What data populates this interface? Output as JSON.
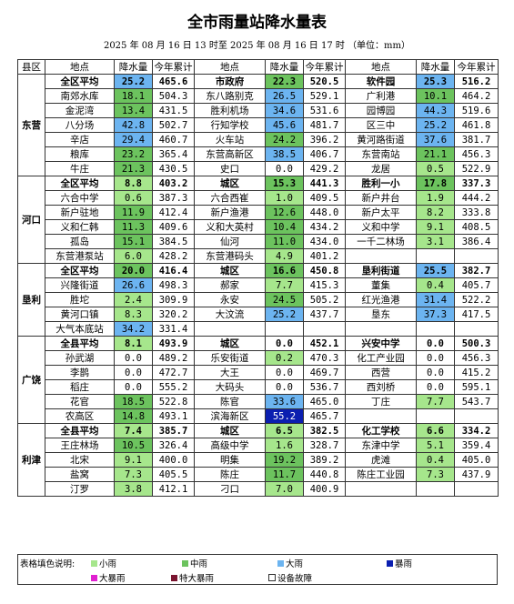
{
  "header": {
    "title": "全市雨量站降水量表",
    "subtitle": "2025 年 08 月 16 日 13 时至 2025 年 08 月 16 日 17 时 （单位：mm）"
  },
  "table": {
    "columns": [
      "县区",
      "地点",
      "降水量",
      "今年累计",
      "地点",
      "降水量",
      "今年累计",
      "地点",
      "降水量",
      "今年累计"
    ],
    "districts": [
      {
        "name": "东营",
        "rows": [
          [
            [
              "全区平均",
              "25.2",
              "465.6"
            ],
            [
              "市政府",
              "22.3",
              "520.5"
            ],
            [
              "软件园",
              "25.3",
              "516.2"
            ]
          ],
          [
            [
              "南郊水库",
              "18.1",
              "504.3"
            ],
            [
              "东八路别克",
              "26.5",
              "529.1"
            ],
            [
              "广利港",
              "10.1",
              "464.2"
            ]
          ],
          [
            [
              "金泥湾",
              "13.4",
              "431.5"
            ],
            [
              "胜利机场",
              "34.6",
              "531.6"
            ],
            [
              "园博园",
              "44.3",
              "519.6"
            ]
          ],
          [
            [
              "八分场",
              "42.8",
              "502.7"
            ],
            [
              "行知学校",
              "45.6",
              "481.7"
            ],
            [
              "区三中",
              "25.2",
              "461.8"
            ]
          ],
          [
            [
              "辛店",
              "29.4",
              "460.7"
            ],
            [
              "火车站",
              "24.2",
              "396.2"
            ],
            [
              "黄河路街道",
              "37.6",
              "381.7"
            ]
          ],
          [
            [
              "粮库",
              "23.2",
              "365.4"
            ],
            [
              "东营高新区",
              "38.5",
              "406.7"
            ],
            [
              "东营南站",
              "21.1",
              "456.3"
            ]
          ],
          [
            [
              "牛庄",
              "21.3",
              "430.5"
            ],
            [
              "史口",
              "0.0",
              "429.2"
            ],
            [
              "龙居",
              "0.5",
              "522.9"
            ]
          ]
        ]
      },
      {
        "name": "河口",
        "rows": [
          [
            [
              "全区平均",
              "8.8",
              "403.2"
            ],
            [
              "城区",
              "15.3",
              "441.3"
            ],
            [
              "胜利一小",
              "17.8",
              "337.3"
            ]
          ],
          [
            [
              "六合中学",
              "0.6",
              "387.3"
            ],
            [
              "六合西崔",
              "1.0",
              "409.5"
            ],
            [
              "新户井台",
              "1.9",
              "444.2"
            ]
          ],
          [
            [
              "新户驻地",
              "11.9",
              "412.4"
            ],
            [
              "新户渔港",
              "12.6",
              "448.0"
            ],
            [
              "新户太平",
              "8.2",
              "333.8"
            ]
          ],
          [
            [
              "义和仁韩",
              "11.3",
              "409.6"
            ],
            [
              "义和大英村",
              "10.4",
              "434.2"
            ],
            [
              "义和中学",
              "9.1",
              "408.5"
            ]
          ],
          [
            [
              "孤岛",
              "15.1",
              "384.5"
            ],
            [
              "仙河",
              "11.0",
              "434.0"
            ],
            [
              "一千二林场",
              "3.1",
              "386.4"
            ]
          ],
          [
            [
              "东营港泵站",
              "6.0",
              "428.2"
            ],
            [
              "东营港码头",
              "4.9",
              "401.2"
            ]
          ]
        ]
      },
      {
        "name": "垦利",
        "rows": [
          [
            [
              "全区平均",
              "20.0",
              "416.4"
            ],
            [
              "城区",
              "16.6",
              "450.8"
            ],
            [
              "垦利街道",
              "25.5",
              "382.7"
            ]
          ],
          [
            [
              "兴隆街道",
              "26.6",
              "498.3"
            ],
            [
              "郝家",
              "7.7",
              "415.3"
            ],
            [
              "董集",
              "0.4",
              "405.7"
            ]
          ],
          [
            [
              "胜坨",
              "2.4",
              "309.9"
            ],
            [
              "永安",
              "24.5",
              "505.2"
            ],
            [
              "红光渔港",
              "31.4",
              "522.2"
            ]
          ],
          [
            [
              "黄河口镇",
              "8.3",
              "320.2"
            ],
            [
              "大汶流",
              "25.2",
              "437.7"
            ],
            [
              "垦东",
              "37.3",
              "417.5"
            ]
          ],
          [
            [
              "大气本底站",
              "34.2",
              "331.4"
            ]
          ]
        ]
      },
      {
        "name": "广饶",
        "rows": [
          [
            [
              "全县平均",
              "8.1",
              "493.9"
            ],
            [
              "城区",
              "0.0",
              "452.1"
            ],
            [
              "兴安中学",
              "0.0",
              "500.3"
            ]
          ],
          [
            [
              "孙武湖",
              "0.0",
              "489.2"
            ],
            [
              "乐安街道",
              "0.2",
              "470.3"
            ],
            [
              "化工产业园",
              "0.0",
              "456.3"
            ]
          ],
          [
            [
              "李鹊",
              "0.0",
              "472.7"
            ],
            [
              "大王",
              "0.0",
              "469.7"
            ],
            [
              "西营",
              "0.0",
              "415.2"
            ]
          ],
          [
            [
              "稻庄",
              "0.0",
              "555.2"
            ],
            [
              "大码头",
              "0.0",
              "536.7"
            ],
            [
              "西刘桥",
              "0.0",
              "595.1"
            ]
          ],
          [
            [
              "花官",
              "18.5",
              "522.8"
            ],
            [
              "陈官",
              "33.6",
              "465.0"
            ],
            [
              "丁庄",
              "7.7",
              "543.7"
            ]
          ],
          [
            [
              "农高区",
              "14.8",
              "493.1"
            ],
            [
              "滨海新区",
              "55.2",
              "465.7"
            ]
          ]
        ]
      },
      {
        "name": "利津",
        "rows": [
          [
            [
              "全县平均",
              "7.4",
              "385.7"
            ],
            [
              "城区",
              "6.5",
              "382.5"
            ],
            [
              "化工学校",
              "6.6",
              "334.2"
            ]
          ],
          [
            [
              "王庄林场",
              "10.5",
              "326.4"
            ],
            [
              "高级中学",
              "1.6",
              "328.7"
            ],
            [
              "东津中学",
              "5.1",
              "359.4"
            ]
          ],
          [
            [
              "北宋",
              "9.1",
              "400.0"
            ],
            [
              "明集",
              "19.2",
              "389.2"
            ],
            [
              "虎滩",
              "0.4",
              "405.0"
            ]
          ],
          [
            [
              "盐窝",
              "7.3",
              "405.5"
            ],
            [
              "陈庄",
              "11.7",
              "440.8"
            ],
            [
              "陈庄工业园",
              "7.3",
              "437.9"
            ]
          ],
          [
            [
              "汀罗",
              "3.8",
              "412.1"
            ],
            [
              "刁口",
              "7.0",
              "400.9"
            ]
          ]
        ]
      }
    ]
  },
  "legend": {
    "title": "表格填色说明:",
    "items": [
      {
        "label": "小雨",
        "color": "#a6e68c"
      },
      {
        "label": "中雨",
        "color": "#6cc35e"
      },
      {
        "label": "大雨",
        "color": "#6cb4f0"
      },
      {
        "label": "暴雨",
        "color": "#0b1fb0"
      },
      {
        "label": "大暴雨",
        "color": "#e020d0"
      },
      {
        "label": "特大暴雨",
        "color": "#7a1430"
      }
    ],
    "fault": "设备故障"
  }
}
